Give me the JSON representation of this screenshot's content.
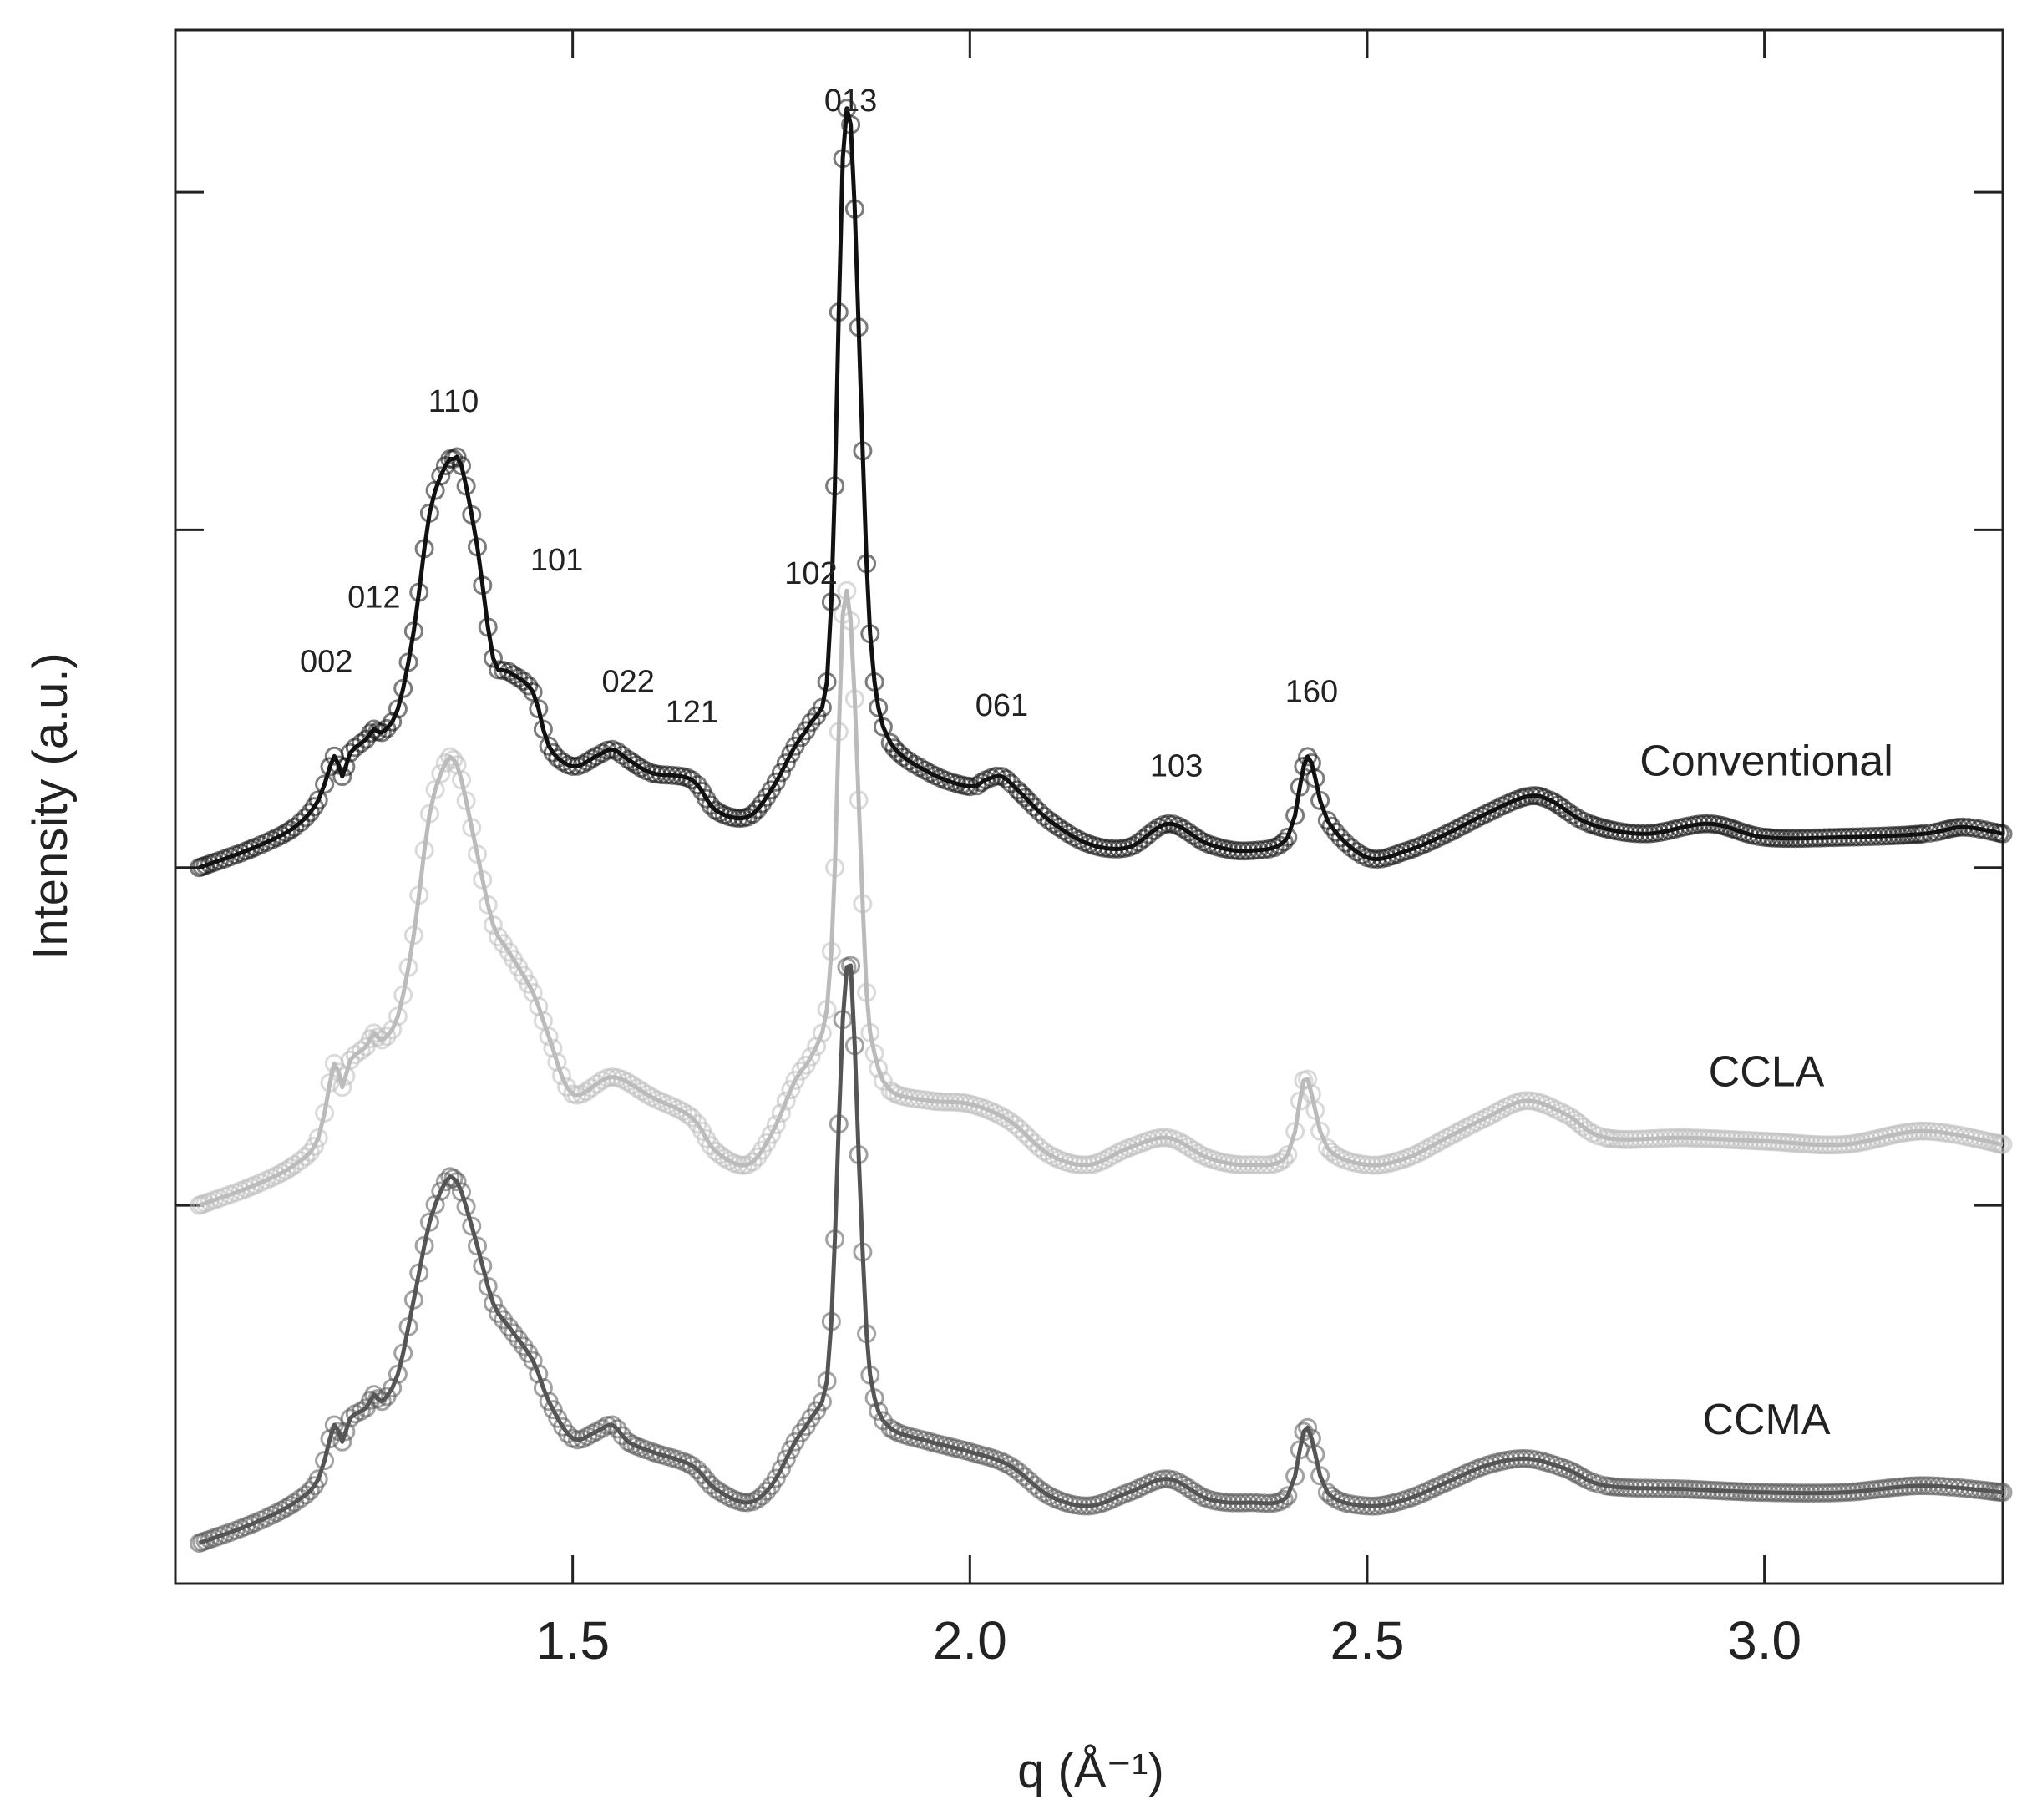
{
  "chart_data": {
    "type": "line",
    "xlabel": "q (Å⁻¹)",
    "ylabel": "Intensity (a.u.)",
    "xlim": [
      1.0,
      3.3
    ],
    "xticks": [
      1.5,
      2.0,
      2.5,
      3.0
    ],
    "xtick_labels": [
      "1.5",
      "2.0",
      "2.5",
      "3.0"
    ],
    "y_tick_count": 4,
    "grid": false,
    "markers": "open circles (data) with solid line (fit)",
    "series": [
      {
        "name": "Conventional",
        "color": "#111111",
        "offset": 2.0,
        "x": [
          1.03,
          1.1,
          1.15,
          1.18,
          1.2,
          1.21,
          1.22,
          1.24,
          1.25,
          1.26,
          1.28,
          1.3,
          1.32,
          1.34,
          1.35,
          1.36,
          1.38,
          1.4,
          1.42,
          1.45,
          1.47,
          1.5,
          1.53,
          1.55,
          1.57,
          1.6,
          1.65,
          1.68,
          1.72,
          1.75,
          1.78,
          1.8,
          1.82,
          1.83,
          1.84,
          1.85,
          1.86,
          1.87,
          1.88,
          1.9,
          1.95,
          2.0,
          2.02,
          2.04,
          2.06,
          2.1,
          2.15,
          2.2,
          2.25,
          2.3,
          2.35,
          2.4,
          2.42,
          2.43,
          2.45,
          2.5,
          2.55,
          2.6,
          2.65,
          2.7,
          2.73,
          2.78,
          2.85,
          2.93,
          3.0,
          3.1,
          3.2,
          3.25,
          3.3
        ],
        "y": [
          0.0,
          0.06,
          0.12,
          0.2,
          0.33,
          0.27,
          0.34,
          0.38,
          0.41,
          0.4,
          0.47,
          0.7,
          1.05,
          1.19,
          1.21,
          1.19,
          0.95,
          0.62,
          0.58,
          0.52,
          0.36,
          0.3,
          0.33,
          0.35,
          0.32,
          0.28,
          0.26,
          0.17,
          0.15,
          0.23,
          0.36,
          0.43,
          0.55,
          1.13,
          2.1,
          2.2,
          1.6,
          0.9,
          0.55,
          0.37,
          0.28,
          0.24,
          0.26,
          0.27,
          0.23,
          0.14,
          0.07,
          0.06,
          0.13,
          0.07,
          0.05,
          0.09,
          0.3,
          0.31,
          0.14,
          0.03,
          0.05,
          0.1,
          0.16,
          0.21,
          0.2,
          0.13,
          0.1,
          0.13,
          0.09,
          0.09,
          0.1,
          0.12,
          0.1
        ]
      },
      {
        "name": "CCLA",
        "color": "#bbbbbb",
        "offset": 1.0,
        "x": [
          1.03,
          1.1,
          1.15,
          1.18,
          1.2,
          1.21,
          1.22,
          1.24,
          1.25,
          1.26,
          1.28,
          1.3,
          1.32,
          1.34,
          1.35,
          1.36,
          1.38,
          1.4,
          1.42,
          1.45,
          1.47,
          1.5,
          1.55,
          1.6,
          1.65,
          1.68,
          1.72,
          1.75,
          1.78,
          1.8,
          1.82,
          1.83,
          1.84,
          1.85,
          1.86,
          1.87,
          1.88,
          1.9,
          1.95,
          2.0,
          2.05,
          2.1,
          2.15,
          2.2,
          2.25,
          2.3,
          2.35,
          2.4,
          2.42,
          2.43,
          2.45,
          2.5,
          2.55,
          2.6,
          2.65,
          2.7,
          2.75,
          2.8,
          2.9,
          3.0,
          3.1,
          3.2,
          3.3
        ],
        "y": [
          0.0,
          0.06,
          0.12,
          0.2,
          0.42,
          0.35,
          0.43,
          0.47,
          0.51,
          0.49,
          0.56,
          0.8,
          1.16,
          1.31,
          1.32,
          1.26,
          1.04,
          0.83,
          0.75,
          0.63,
          0.5,
          0.33,
          0.38,
          0.32,
          0.26,
          0.16,
          0.12,
          0.21,
          0.37,
          0.44,
          0.58,
          1.0,
          1.75,
          1.73,
          1.2,
          0.63,
          0.45,
          0.34,
          0.31,
          0.3,
          0.25,
          0.15,
          0.12,
          0.17,
          0.2,
          0.14,
          0.12,
          0.15,
          0.37,
          0.33,
          0.17,
          0.12,
          0.14,
          0.2,
          0.26,
          0.31,
          0.27,
          0.2,
          0.2,
          0.19,
          0.18,
          0.22,
          0.18
        ]
      },
      {
        "name": "CCMA",
        "color": "#555555",
        "offset": 0.0,
        "x": [
          1.03,
          1.1,
          1.15,
          1.18,
          1.2,
          1.21,
          1.22,
          1.24,
          1.25,
          1.26,
          1.28,
          1.3,
          1.32,
          1.34,
          1.35,
          1.36,
          1.38,
          1.4,
          1.42,
          1.45,
          1.47,
          1.5,
          1.53,
          1.55,
          1.57,
          1.6,
          1.65,
          1.68,
          1.72,
          1.75,
          1.78,
          1.8,
          1.82,
          1.83,
          1.84,
          1.85,
          1.86,
          1.87,
          1.88,
          1.9,
          1.95,
          2.0,
          2.05,
          2.1,
          2.15,
          2.2,
          2.25,
          2.3,
          2.35,
          2.4,
          2.42,
          2.43,
          2.45,
          2.5,
          2.55,
          2.6,
          2.65,
          2.7,
          2.75,
          2.8,
          2.9,
          3.0,
          3.1,
          3.2,
          3.3
        ],
        "y": [
          0.0,
          0.06,
          0.12,
          0.19,
          0.35,
          0.3,
          0.37,
          0.4,
          0.44,
          0.42,
          0.5,
          0.72,
          0.95,
          1.07,
          1.08,
          1.04,
          0.88,
          0.71,
          0.64,
          0.54,
          0.42,
          0.31,
          0.33,
          0.35,
          0.3,
          0.27,
          0.23,
          0.16,
          0.12,
          0.17,
          0.3,
          0.37,
          0.48,
          0.9,
          1.55,
          1.71,
          1.15,
          0.62,
          0.43,
          0.34,
          0.3,
          0.27,
          0.23,
          0.14,
          0.11,
          0.15,
          0.19,
          0.13,
          0.12,
          0.14,
          0.33,
          0.31,
          0.15,
          0.11,
          0.13,
          0.18,
          0.23,
          0.25,
          0.22,
          0.17,
          0.16,
          0.15,
          0.15,
          0.17,
          0.15
        ]
      }
    ],
    "annotations": [
      {
        "text": "002",
        "x": 1.19,
        "y": 2.58
      },
      {
        "text": "012",
        "x": 1.25,
        "y": 2.77
      },
      {
        "text": "110",
        "x": 1.35,
        "y": 3.35
      },
      {
        "text": "101",
        "x": 1.48,
        "y": 2.88
      },
      {
        "text": "022",
        "x": 1.57,
        "y": 2.52
      },
      {
        "text": "121",
        "x": 1.65,
        "y": 2.43
      },
      {
        "text": "102",
        "x": 1.8,
        "y": 2.84
      },
      {
        "text": "013",
        "x": 1.85,
        "y": 4.24
      },
      {
        "text": "061",
        "x": 2.04,
        "y": 2.45
      },
      {
        "text": "103",
        "x": 2.26,
        "y": 2.27
      },
      {
        "text": "160",
        "x": 2.43,
        "y": 2.49
      }
    ]
  }
}
